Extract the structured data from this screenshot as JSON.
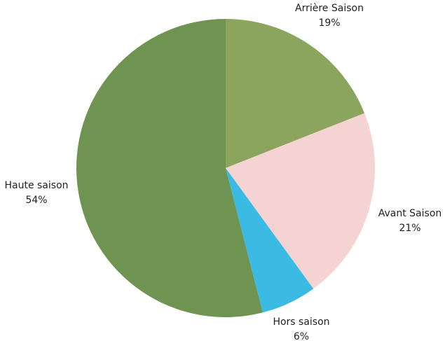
{
  "chart_data": {
    "type": "pie",
    "categories": [
      "Arrière Saison",
      "Avant Saison",
      "Hors saison",
      "Haute saison"
    ],
    "values": [
      19,
      21,
      6,
      54
    ],
    "value_labels": [
      "19%",
      "21%",
      "6%",
      "54%"
    ],
    "colors": [
      "#8ba55e",
      "#f5d3d3",
      "#3bbbe3",
      "#6f9451"
    ]
  }
}
